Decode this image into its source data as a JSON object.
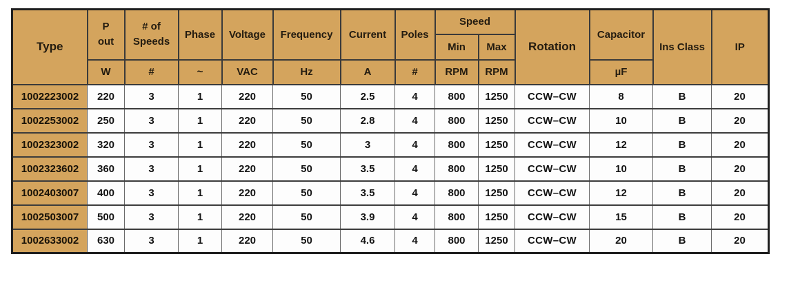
{
  "colors": {
    "header_bg": "#d4a45d",
    "type_column_bg": "#d4a45d",
    "cell_bg": "#fdfdfd",
    "outer_border": "#1f1f1f",
    "inner_border": "#3a3a3a",
    "header_text": "#241c10",
    "cell_text": "#141414"
  },
  "chart_data": {
    "type": "table",
    "header": {
      "type": "Type",
      "p_out_line1": "P",
      "p_out_line2": "out",
      "speeds_line1": "# of",
      "speeds_line2": "Speeds",
      "phase": "Phase",
      "voltage": "Voltage",
      "frequency": "Frequency",
      "current": "Current",
      "poles": "Poles",
      "speed": "Speed",
      "speed_min": "Min",
      "speed_max": "Max",
      "rotation": "Rotation",
      "capacitor": "Capacitor",
      "ins_class": "Ins Class",
      "ip": "IP"
    },
    "units": {
      "p_out": "W",
      "speeds": "#",
      "phase": "~",
      "voltage": "VAC",
      "frequency": "Hz",
      "current": "A",
      "poles": "#",
      "speed_min": "RPM",
      "speed_max": "RPM",
      "capacitor": "µF"
    },
    "columns": [
      "Type",
      "P out (W)",
      "# of Speeds (#)",
      "Phase (~)",
      "Voltage (VAC)",
      "Frequency (Hz)",
      "Current (A)",
      "Poles (#)",
      "Speed Min (RPM)",
      "Speed Max (RPM)",
      "Rotation",
      "Capacitor (µF)",
      "Ins Class",
      "IP"
    ],
    "rows": [
      [
        "1002223002",
        "220",
        "3",
        "1",
        "220",
        "50",
        "2.5",
        "4",
        "800",
        "1250",
        "CCW–CW",
        "8",
        "B",
        "20"
      ],
      [
        "1002253002",
        "250",
        "3",
        "1",
        "220",
        "50",
        "2.8",
        "4",
        "800",
        "1250",
        "CCW–CW",
        "10",
        "B",
        "20"
      ],
      [
        "1002323002",
        "320",
        "3",
        "1",
        "220",
        "50",
        "3",
        "4",
        "800",
        "1250",
        "CCW–CW",
        "12",
        "B",
        "20"
      ],
      [
        "1002323602",
        "360",
        "3",
        "1",
        "220",
        "50",
        "3.5",
        "4",
        "800",
        "1250",
        "CCW–CW",
        "10",
        "B",
        "20"
      ],
      [
        "1002403007",
        "400",
        "3",
        "1",
        "220",
        "50",
        "3.5",
        "4",
        "800",
        "1250",
        "CCW–CW",
        "12",
        "B",
        "20"
      ],
      [
        "1002503007",
        "500",
        "3",
        "1",
        "220",
        "50",
        "3.9",
        "4",
        "800",
        "1250",
        "CCW–CW",
        "15",
        "B",
        "20"
      ],
      [
        "1002633002",
        "630",
        "3",
        "1",
        "220",
        "50",
        "4.6",
        "4",
        "800",
        "1250",
        "CCW–CW",
        "20",
        "B",
        "20"
      ]
    ]
  }
}
